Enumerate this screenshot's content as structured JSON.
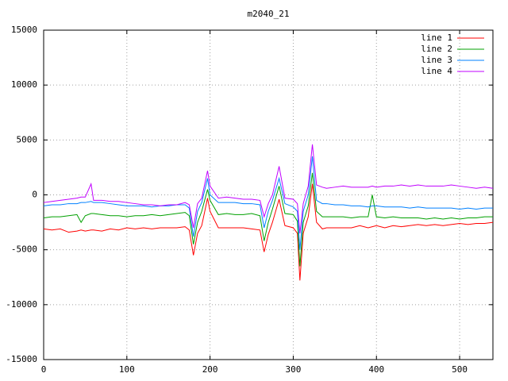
{
  "chart_data": {
    "type": "line",
    "title": "m2040_21",
    "x": [
      0,
      10,
      20,
      30,
      40,
      45,
      50,
      57,
      60,
      70,
      80,
      90,
      100,
      110,
      120,
      130,
      140,
      150,
      160,
      170,
      175,
      180,
      185,
      190,
      197,
      200,
      210,
      220,
      230,
      240,
      250,
      260,
      265,
      270,
      275,
      283,
      290,
      300,
      305,
      308,
      312,
      318,
      323,
      328,
      335,
      340,
      350,
      360,
      370,
      380,
      390,
      395,
      400,
      410,
      420,
      430,
      440,
      450,
      460,
      470,
      480,
      490,
      500,
      510,
      520,
      530,
      540
    ],
    "series": [
      {
        "name": "line 1",
        "color": "#ff0000",
        "values": [
          -3100,
          -3200,
          -3100,
          -3400,
          -3300,
          -3200,
          -3300,
          -3200,
          -3200,
          -3300,
          -3100,
          -3200,
          -3000,
          -3100,
          -3000,
          -3100,
          -3000,
          -3000,
          -3000,
          -2900,
          -3200,
          -5500,
          -3500,
          -2800,
          -300,
          -1500,
          -3000,
          -3000,
          -3000,
          -3000,
          -3100,
          -3200,
          -5200,
          -3600,
          -2500,
          -400,
          -2800,
          -3000,
          -3500,
          -7800,
          -3500,
          -2000,
          1000,
          -2500,
          -3100,
          -3000,
          -3000,
          -3000,
          -3000,
          -2800,
          -3000,
          -2900,
          -2800,
          -3000,
          -2800,
          -2900,
          -2800,
          -2700,
          -2800,
          -2700,
          -2800,
          -2700,
          -2600,
          -2700,
          -2600,
          -2600,
          -2500
        ]
      },
      {
        "name": "line 2",
        "color": "#00a000",
        "values": [
          -2100,
          -2000,
          -2000,
          -1900,
          -1800,
          -2500,
          -1900,
          -1700,
          -1700,
          -1800,
          -1900,
          -1900,
          -2000,
          -1900,
          -1900,
          -1800,
          -1900,
          -1800,
          -1700,
          -1600,
          -1900,
          -4500,
          -2500,
          -1500,
          500,
          -500,
          -1800,
          -1700,
          -1800,
          -1800,
          -1700,
          -1900,
          -4200,
          -2500,
          -1300,
          800,
          -1700,
          -1800,
          -2400,
          -6500,
          -2500,
          -1000,
          2000,
          -1500,
          -2000,
          -2000,
          -2000,
          -2000,
          -2100,
          -2000,
          -2000,
          0,
          -2000,
          -2100,
          -2000,
          -2100,
          -2100,
          -2100,
          -2200,
          -2100,
          -2200,
          -2100,
          -2200,
          -2100,
          -2100,
          -2000,
          -2000
        ]
      },
      {
        "name": "line 3",
        "color": "#0080ff",
        "values": [
          -1000,
          -900,
          -900,
          -800,
          -800,
          -700,
          -700,
          -600,
          -700,
          -700,
          -800,
          -900,
          -1000,
          -1000,
          -1000,
          -1100,
          -1000,
          -1000,
          -900,
          -900,
          -1200,
          -3800,
          -1500,
          -700,
          1500,
          0,
          -700,
          -700,
          -700,
          -800,
          -800,
          -900,
          -3000,
          -1500,
          -500,
          1500,
          -800,
          -1100,
          -1500,
          -5000,
          -1500,
          0,
          3500,
          -500,
          -800,
          -800,
          -900,
          -900,
          -1000,
          -1000,
          -1100,
          -1000,
          -1000,
          -1100,
          -1100,
          -1100,
          -1200,
          -1100,
          -1200,
          -1200,
          -1200,
          -1200,
          -1300,
          -1200,
          -1300,
          -1200,
          -1200
        ]
      },
      {
        "name": "line 4",
        "color": "#c000ff",
        "values": [
          -700,
          -600,
          -500,
          -400,
          -300,
          -200,
          -200,
          1000,
          -500,
          -500,
          -600,
          -600,
          -700,
          -800,
          -900,
          -900,
          -1000,
          -900,
          -900,
          -700,
          -900,
          -3000,
          -800,
          -300,
          2200,
          800,
          -300,
          -200,
          -300,
          -400,
          -400,
          -500,
          -2000,
          -800,
          0,
          2600,
          -300,
          -400,
          -800,
          -3500,
          -800,
          800,
          4600,
          900,
          700,
          600,
          700,
          800,
          700,
          700,
          700,
          800,
          700,
          800,
          800,
          900,
          800,
          900,
          800,
          800,
          800,
          900,
          800,
          700,
          600,
          700,
          600
        ]
      }
    ],
    "xlim": [
      0,
      540
    ],
    "xticks": [
      0,
      100,
      200,
      300,
      400,
      500
    ],
    "ylim": [
      -15000,
      15000
    ],
    "yticks": [
      -15000,
      -10000,
      -5000,
      0,
      5000,
      10000,
      15000
    ],
    "grid": true,
    "legend": "top-right"
  }
}
